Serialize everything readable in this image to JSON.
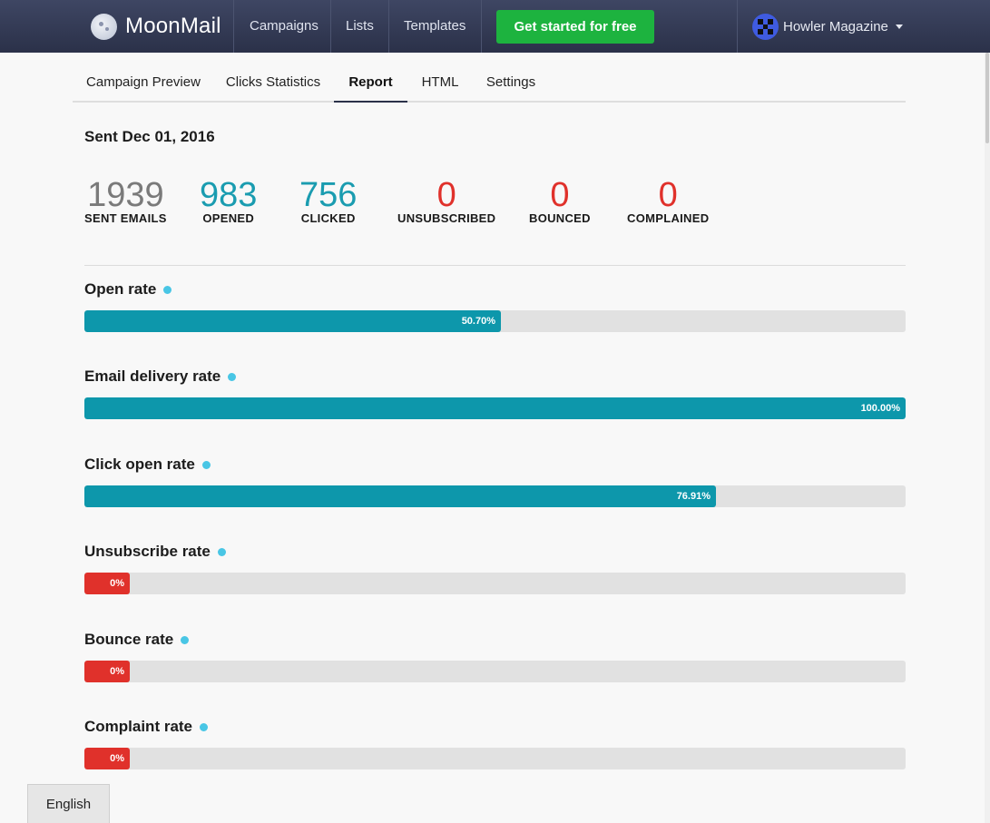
{
  "header": {
    "logo": "MoonMail",
    "nav": [
      "Campaigns",
      "Lists",
      "Templates"
    ],
    "cta": "Get started for free",
    "account_name": "Howler Magazine"
  },
  "tabs": [
    "Campaign Preview",
    "Clicks Statistics",
    "Report",
    "HTML",
    "Settings"
  ],
  "active_tab": "Report",
  "report": {
    "sent_label": "Sent Dec 01, 2016",
    "stats": [
      {
        "value": "1939",
        "label": "SENT EMAILS",
        "color": "#7a7a7a"
      },
      {
        "value": "983",
        "label": "OPENED",
        "color": "#1a9cb0"
      },
      {
        "value": "756",
        "label": "CLICKED",
        "color": "#1a9cb0"
      },
      {
        "value": "0",
        "label": "UNSUBSCRIBED",
        "color": "#e0312b"
      },
      {
        "value": "0",
        "label": "BOUNCED",
        "color": "#e0312b"
      },
      {
        "value": "0",
        "label": "COMPLAINED",
        "color": "#e0312b"
      }
    ],
    "rates": [
      {
        "label": "Open rate",
        "percent": 50.7,
        "text": "50.70%",
        "color": "#0d97ab"
      },
      {
        "label": "Email delivery rate",
        "percent": 100.0,
        "text": "100.00%",
        "color": "#0d97ab"
      },
      {
        "label": "Click open rate",
        "percent": 76.91,
        "text": "76.91%",
        "color": "#0d97ab"
      },
      {
        "label": "Unsubscribe rate",
        "percent": 0,
        "text": "0%",
        "color": "#e0312b"
      },
      {
        "label": "Bounce rate",
        "percent": 0,
        "text": "0%",
        "color": "#e0312b"
      },
      {
        "label": "Complaint rate",
        "percent": 0,
        "text": "0%",
        "color": "#e0312b"
      }
    ]
  },
  "footer": {
    "language": "English"
  },
  "icons": {
    "logo": "moon-logo-icon",
    "avatar": "avatar-icon",
    "dropdown": "chevron-down-icon",
    "info": "info-dot-icon"
  }
}
